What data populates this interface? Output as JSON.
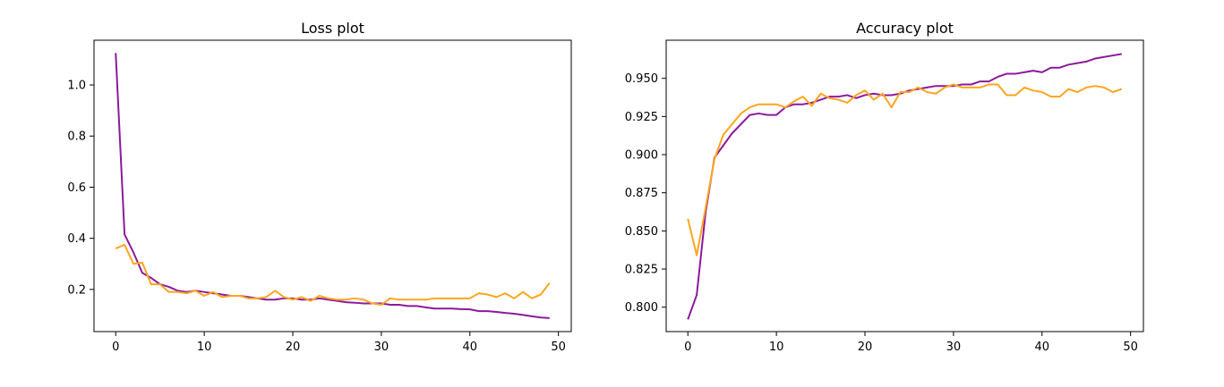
{
  "chart_data": [
    {
      "type": "line",
      "title": "Loss plot",
      "xlabel": "",
      "ylabel": "",
      "xlim": [
        -2.45,
        51.45
      ],
      "ylim": [
        0.035,
        1.175
      ],
      "xticks": [
        0,
        10,
        20,
        30,
        40,
        50
      ],
      "yticks": [
        0.2,
        0.4,
        0.6,
        0.8,
        1.0
      ],
      "ytick_labels": [
        "0.2",
        "0.4",
        "0.6",
        "0.8",
        "1.0"
      ],
      "grid": false,
      "colors": [
        "#8B1A9C",
        "#FFA51F"
      ],
      "series": [
        {
          "values": [
            1.125,
            0.415,
            0.345,
            0.265,
            0.245,
            0.22,
            0.21,
            0.195,
            0.19,
            0.195,
            0.19,
            0.185,
            0.18,
            0.175,
            0.175,
            0.17,
            0.165,
            0.16,
            0.16,
            0.165,
            0.165,
            0.16,
            0.16,
            0.165,
            0.16,
            0.155,
            0.15,
            0.148,
            0.145,
            0.145,
            0.145,
            0.14,
            0.14,
            0.135,
            0.135,
            0.13,
            0.125,
            0.125,
            0.125,
            0.123,
            0.122,
            0.115,
            0.115,
            0.112,
            0.108,
            0.105,
            0.1,
            0.095,
            0.09,
            0.088
          ]
        },
        {
          "values": [
            0.36,
            0.375,
            0.3,
            0.305,
            0.22,
            0.22,
            0.19,
            0.19,
            0.185,
            0.195,
            0.175,
            0.19,
            0.17,
            0.175,
            0.175,
            0.165,
            0.165,
            0.17,
            0.195,
            0.17,
            0.16,
            0.17,
            0.155,
            0.175,
            0.165,
            0.16,
            0.16,
            0.165,
            0.16,
            0.145,
            0.14,
            0.165,
            0.16,
            0.16,
            0.16,
            0.16,
            0.165,
            0.165,
            0.165,
            0.165,
            0.165,
            0.185,
            0.18,
            0.17,
            0.185,
            0.165,
            0.19,
            0.165,
            0.18,
            0.225
          ]
        }
      ]
    },
    {
      "type": "line",
      "title": "Accuracy plot",
      "xlabel": "",
      "ylabel": "",
      "xlim": [
        -2.45,
        51.45
      ],
      "ylim": [
        0.784,
        0.975
      ],
      "xticks": [
        0,
        10,
        20,
        30,
        40,
        50
      ],
      "yticks": [
        0.8,
        0.825,
        0.85,
        0.875,
        0.9,
        0.925,
        0.95
      ],
      "ytick_labels": [
        "0.800",
        "0.825",
        "0.850",
        "0.875",
        "0.900",
        "0.925",
        "0.950"
      ],
      "grid": false,
      "colors": [
        "#8B1A9C",
        "#FFA51F"
      ],
      "series": [
        {
          "values": [
            0.792,
            0.808,
            0.862,
            0.898,
            0.906,
            0.914,
            0.92,
            0.926,
            0.927,
            0.926,
            0.926,
            0.931,
            0.933,
            0.933,
            0.934,
            0.936,
            0.938,
            0.938,
            0.939,
            0.937,
            0.939,
            0.94,
            0.939,
            0.939,
            0.94,
            0.942,
            0.943,
            0.944,
            0.945,
            0.945,
            0.945,
            0.946,
            0.946,
            0.948,
            0.948,
            0.951,
            0.953,
            0.953,
            0.954,
            0.955,
            0.954,
            0.957,
            0.957,
            0.959,
            0.96,
            0.961,
            0.963,
            0.964,
            0.965,
            0.966
          ]
        },
        {
          "values": [
            0.858,
            0.834,
            0.865,
            0.897,
            0.913,
            0.92,
            0.927,
            0.931,
            0.933,
            0.933,
            0.933,
            0.931,
            0.935,
            0.938,
            0.932,
            0.94,
            0.937,
            0.936,
            0.934,
            0.939,
            0.942,
            0.936,
            0.94,
            0.931,
            0.941,
            0.941,
            0.944,
            0.941,
            0.94,
            0.944,
            0.946,
            0.944,
            0.944,
            0.944,
            0.946,
            0.946,
            0.939,
            0.939,
            0.944,
            0.942,
            0.941,
            0.938,
            0.938,
            0.943,
            0.941,
            0.944,
            0.945,
            0.944,
            0.941,
            0.943
          ]
        }
      ]
    }
  ]
}
